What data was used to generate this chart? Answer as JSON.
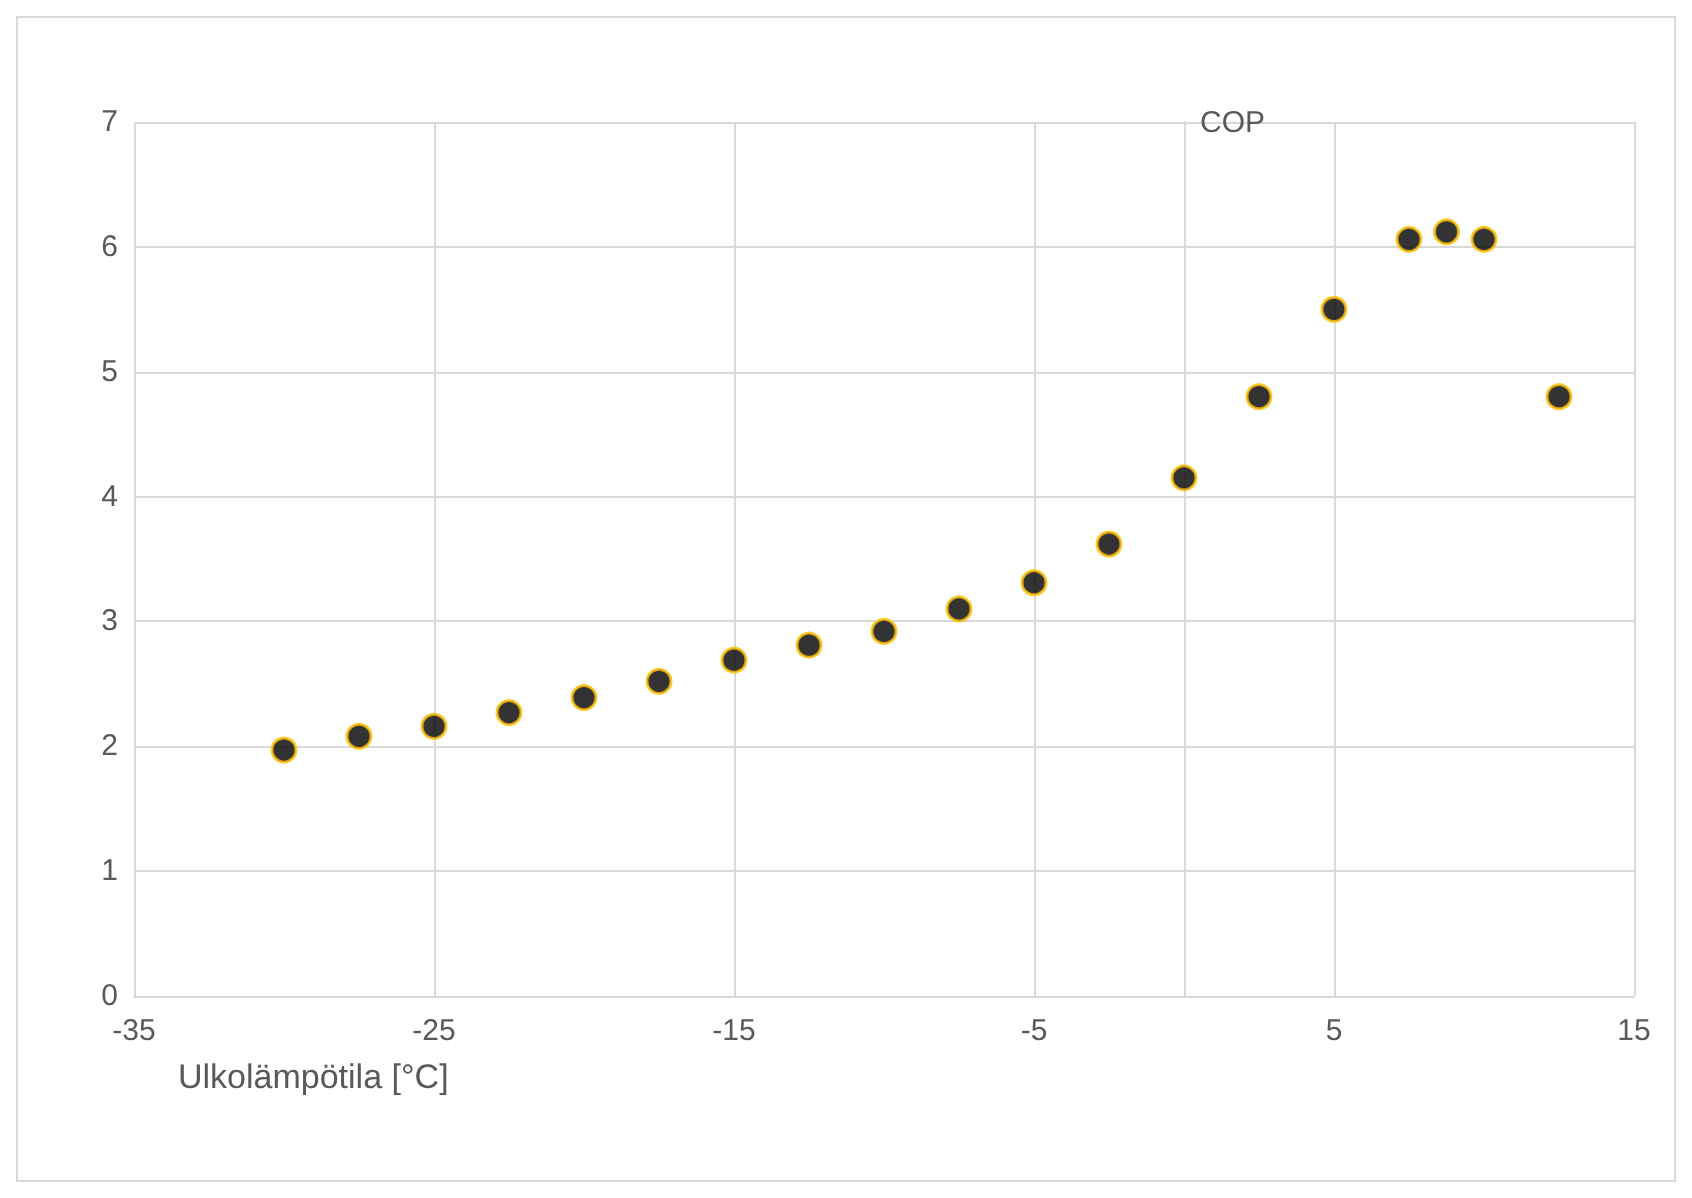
{
  "chart_data": {
    "type": "scatter",
    "xlabel": "Ulkolämpötila [°C]",
    "ylabel": "COP",
    "x": [
      -30,
      -27.5,
      -25,
      -22.5,
      -20,
      -17.5,
      -15,
      -12.5,
      -10,
      -7.5,
      -5,
      -2.5,
      0,
      2.5,
      5,
      7.5,
      8.75,
      10,
      12.5
    ],
    "values": [
      1.97,
      2.08,
      2.16,
      2.27,
      2.39,
      2.52,
      2.69,
      2.81,
      2.92,
      3.1,
      3.31,
      3.62,
      4.15,
      4.8,
      5.5,
      6.06,
      6.12,
      6.06,
      4.8
    ],
    "color": "#000000",
    "marker": "circle",
    "xlim": [
      -35,
      15
    ],
    "xticks": [
      -35,
      -25,
      -15,
      -5,
      5,
      15
    ],
    "ylim": [
      0,
      7
    ],
    "yticks": [
      0,
      1,
      2,
      3,
      4,
      5,
      6,
      7
    ],
    "grid": true
  }
}
